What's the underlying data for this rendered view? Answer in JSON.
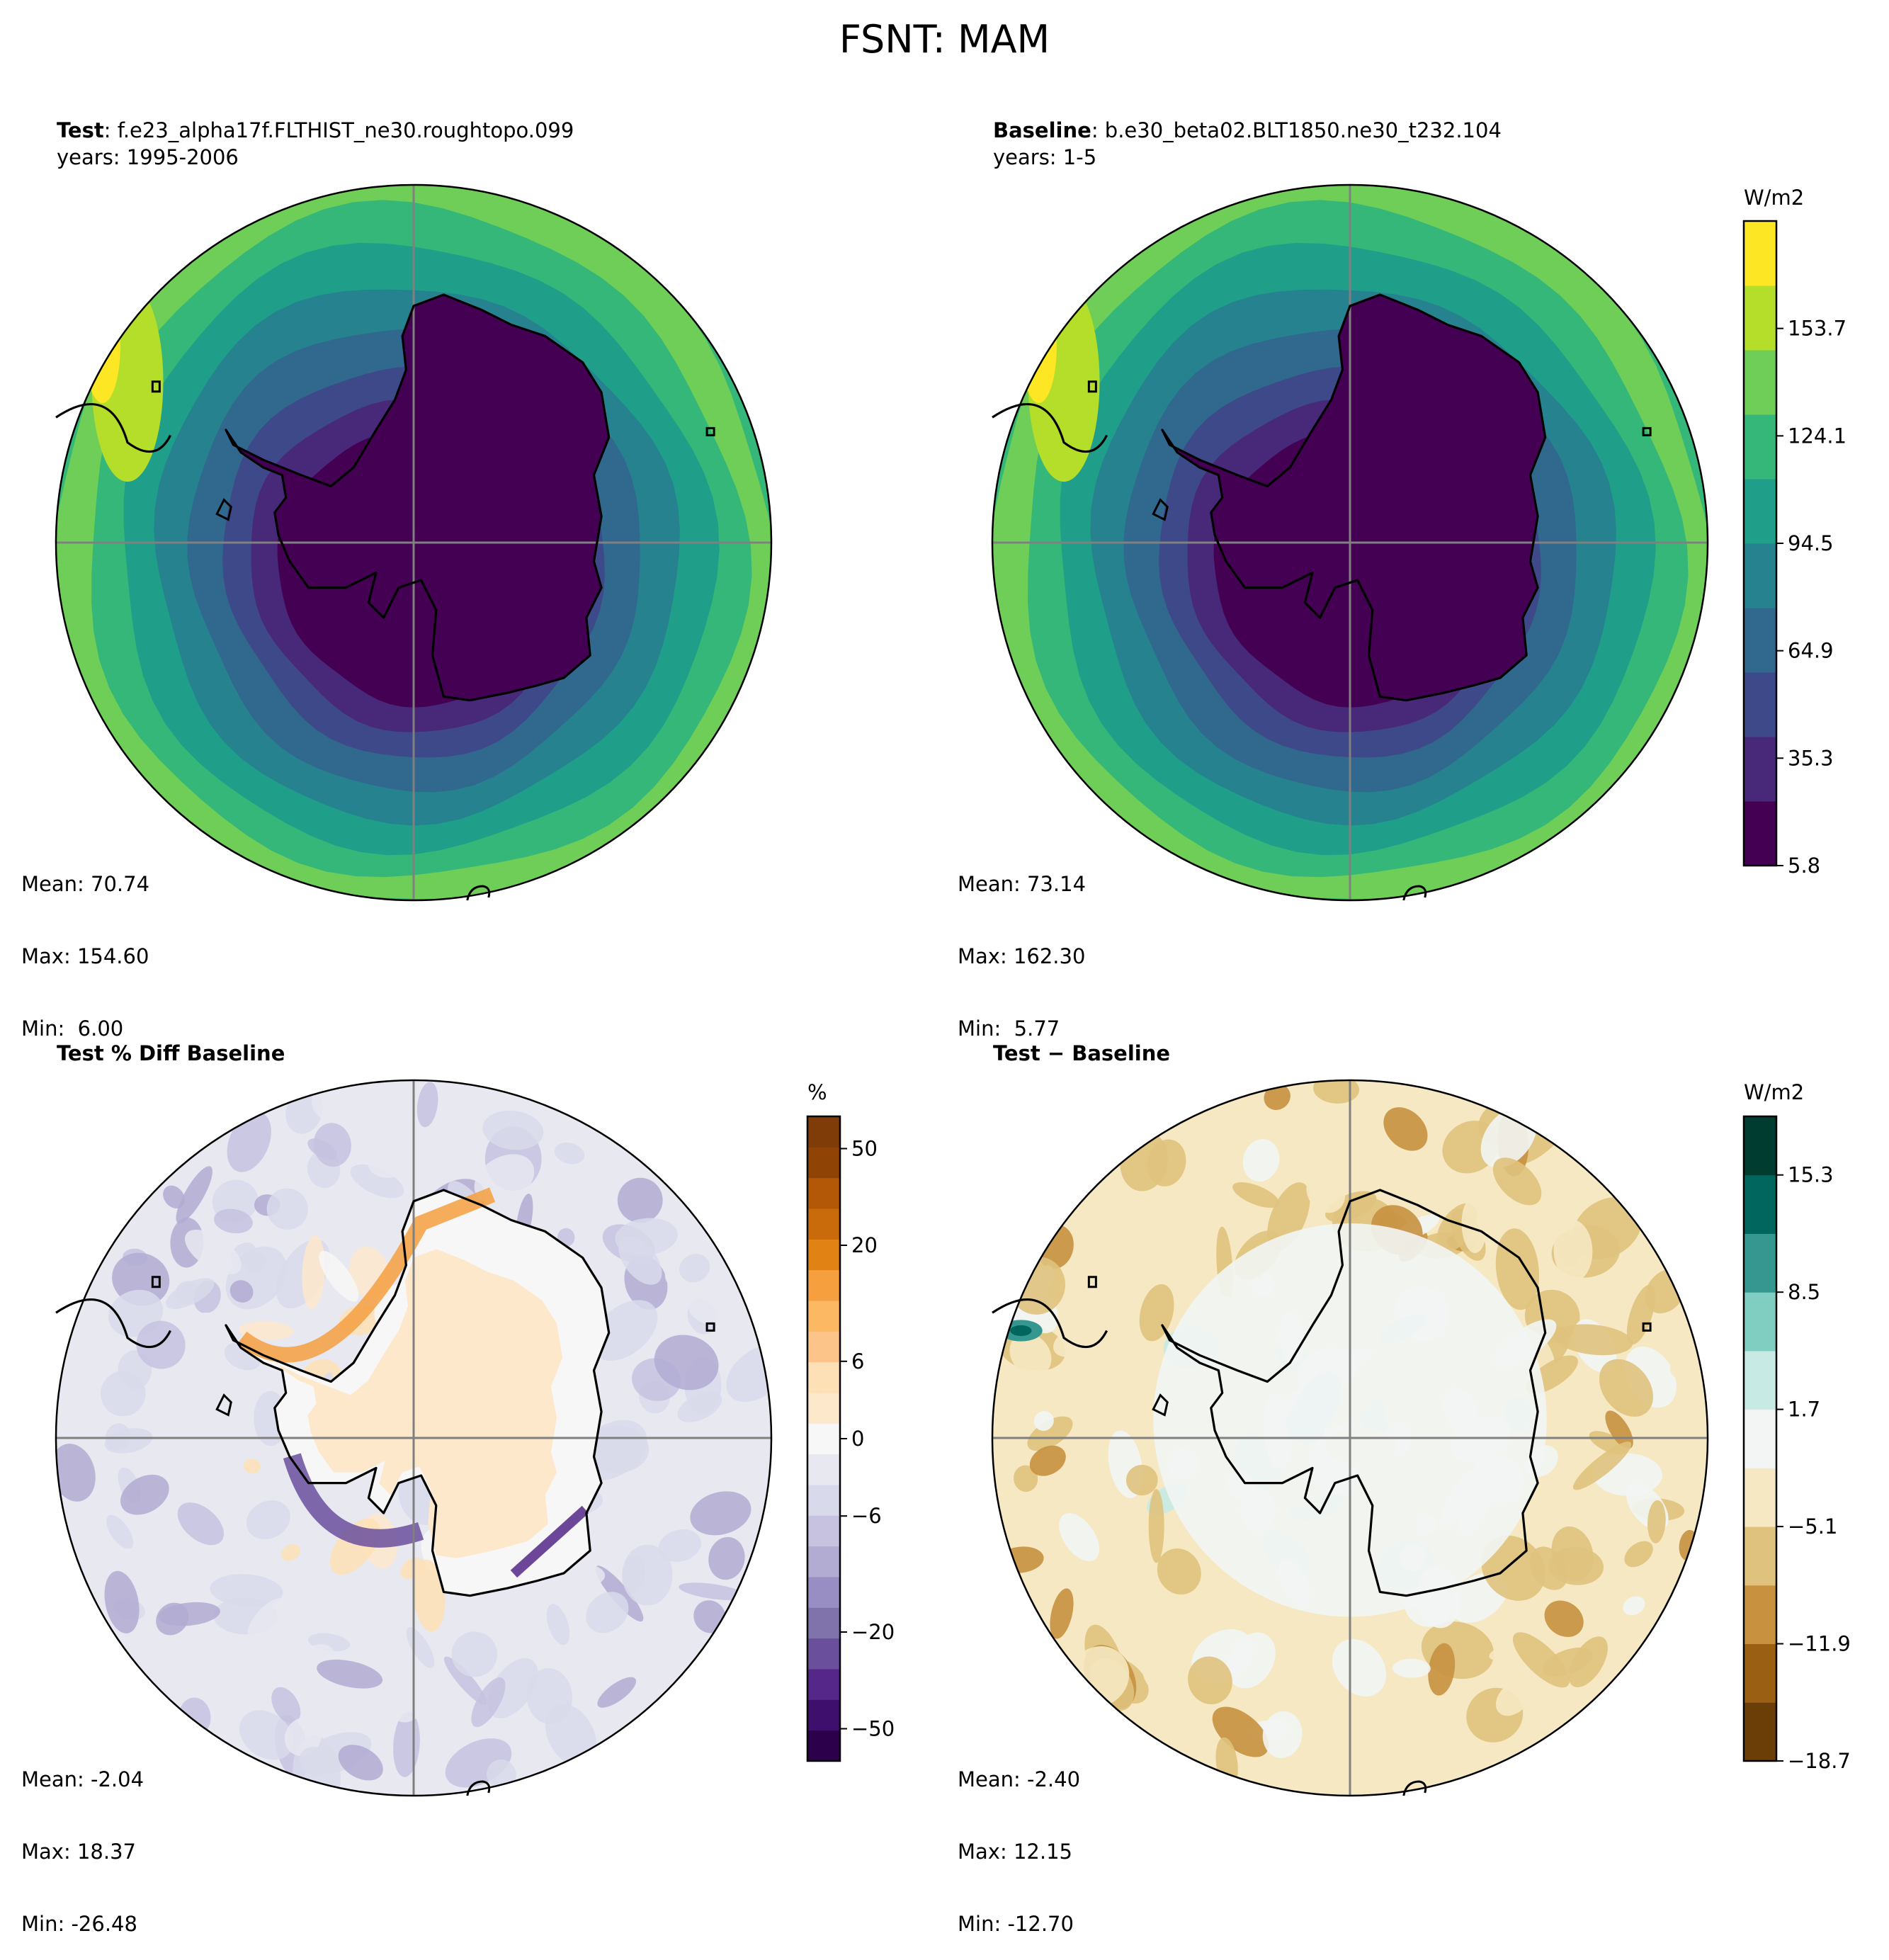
{
  "suptitle": "FSNT: MAM",
  "panels": [
    {
      "id": "test",
      "title_bold": "Test",
      "title_rest": ": f.e23_alpha17f.FLTHIST_ne30.roughtopo.099",
      "subtitle": "years: 1995-2006",
      "stats": {
        "mean": "Mean: 70.74",
        "max": "Max: 154.60",
        "min": "Min:  6.00"
      }
    },
    {
      "id": "baseline",
      "title_bold": "Baseline",
      "title_rest": ": b.e30_beta02.BLT1850.ne30_t232.104",
      "subtitle": "years: 1-5",
      "stats": {
        "mean": "Mean: 73.14",
        "max": "Max: 162.30",
        "min": "Min:  5.77"
      }
    },
    {
      "id": "pctdiff",
      "title_bold": "Test % Diff Baseline",
      "title_rest": "",
      "subtitle": "",
      "stats": {
        "mean": "Mean: -2.04",
        "max": "Max: 18.37",
        "min": "Min: -26.48"
      }
    },
    {
      "id": "diff",
      "title_bold": "Test − Baseline",
      "title_rest": "",
      "subtitle": "",
      "stats": {
        "mean": "Mean: -2.40",
        "max": "Max: 12.15",
        "min": "Min: -12.70"
      }
    }
  ],
  "colorbars": {
    "viridis": {
      "units": "W/m2",
      "ticks": [
        "5.8",
        "35.3",
        "64.9",
        "94.5",
        "124.1",
        "153.7"
      ],
      "colors": [
        "#440154",
        "#482878",
        "#3e4989",
        "#31688e",
        "#26828e",
        "#1f9e89",
        "#35b779",
        "#6ece58",
        "#b5de2b",
        "#fde725"
      ]
    },
    "pct": {
      "units": "%",
      "ticks": [
        "−50",
        "−20",
        "−6",
        "0",
        "6",
        "20",
        "50"
      ],
      "colors": [
        "#2d004b",
        "#3f0f6e",
        "#542788",
        "#6a4f9d",
        "#8073ac",
        "#998ec3",
        "#b2abd2",
        "#c6c2e0",
        "#d8daeb",
        "#e8e8f1",
        "#f7f7f7",
        "#fde8cc",
        "#fee0b6",
        "#fdc48a",
        "#fdb863",
        "#f59f3f",
        "#e08214",
        "#c96b0a",
        "#b35806",
        "#8f4406",
        "#7f3b08"
      ]
    },
    "diff": {
      "units": "W/m2",
      "ticks": [
        "−18.7",
        "−11.9",
        "−5.1",
        "1.7",
        "8.5",
        "15.3"
      ],
      "colors": [
        "#6b3e08",
        "#9b5f14",
        "#c79140",
        "#dfc27d",
        "#f6e8c3",
        "#f2f5f4",
        "#c7eae5",
        "#80cdc1",
        "#35978f",
        "#01665e",
        "#003c30"
      ]
    }
  },
  "chart_data": [
    {
      "type": "heatmap",
      "title": "Test : f.e23_alpha17f.FLTHIST_ne30.roughtopo.099",
      "subtitle": "years: 1995-2006",
      "projection": "south polar stereographic",
      "variable": "FSNT",
      "season": "MAM",
      "units": "W/m2",
      "levels": [
        5.8,
        20.6,
        35.3,
        50.1,
        64.9,
        79.7,
        94.5,
        109.3,
        124.1,
        138.9,
        153.7,
        168.5
      ],
      "mean": 70.74,
      "max": 154.6,
      "min": 6.0
    },
    {
      "type": "heatmap",
      "title": "Baseline : b.e30_beta02.BLT1850.ne30_t232.104",
      "subtitle": "years: 1-5",
      "projection": "south polar stereographic",
      "variable": "FSNT",
      "season": "MAM",
      "units": "W/m2",
      "levels": [
        5.8,
        20.6,
        35.3,
        50.1,
        64.9,
        79.7,
        94.5,
        109.3,
        124.1,
        138.9,
        153.7,
        168.5
      ],
      "mean": 73.14,
      "max": 162.3,
      "min": 5.77
    },
    {
      "type": "heatmap",
      "title": "Test % Diff Baseline",
      "projection": "south polar stereographic",
      "units": "%",
      "colorbar_ticks": [
        -50,
        -20,
        -6,
        0,
        6,
        20,
        50
      ],
      "mean": -2.04,
      "max": 18.37,
      "min": -26.48
    },
    {
      "type": "heatmap",
      "title": "Test − Baseline",
      "projection": "south polar stereographic",
      "units": "W/m2",
      "levels": [
        -18.7,
        -15.3,
        -11.9,
        -8.5,
        -5.1,
        -1.7,
        1.7,
        5.1,
        8.5,
        11.9,
        15.3,
        18.7
      ],
      "mean": -2.4,
      "max": 12.15,
      "min": -12.7
    }
  ]
}
